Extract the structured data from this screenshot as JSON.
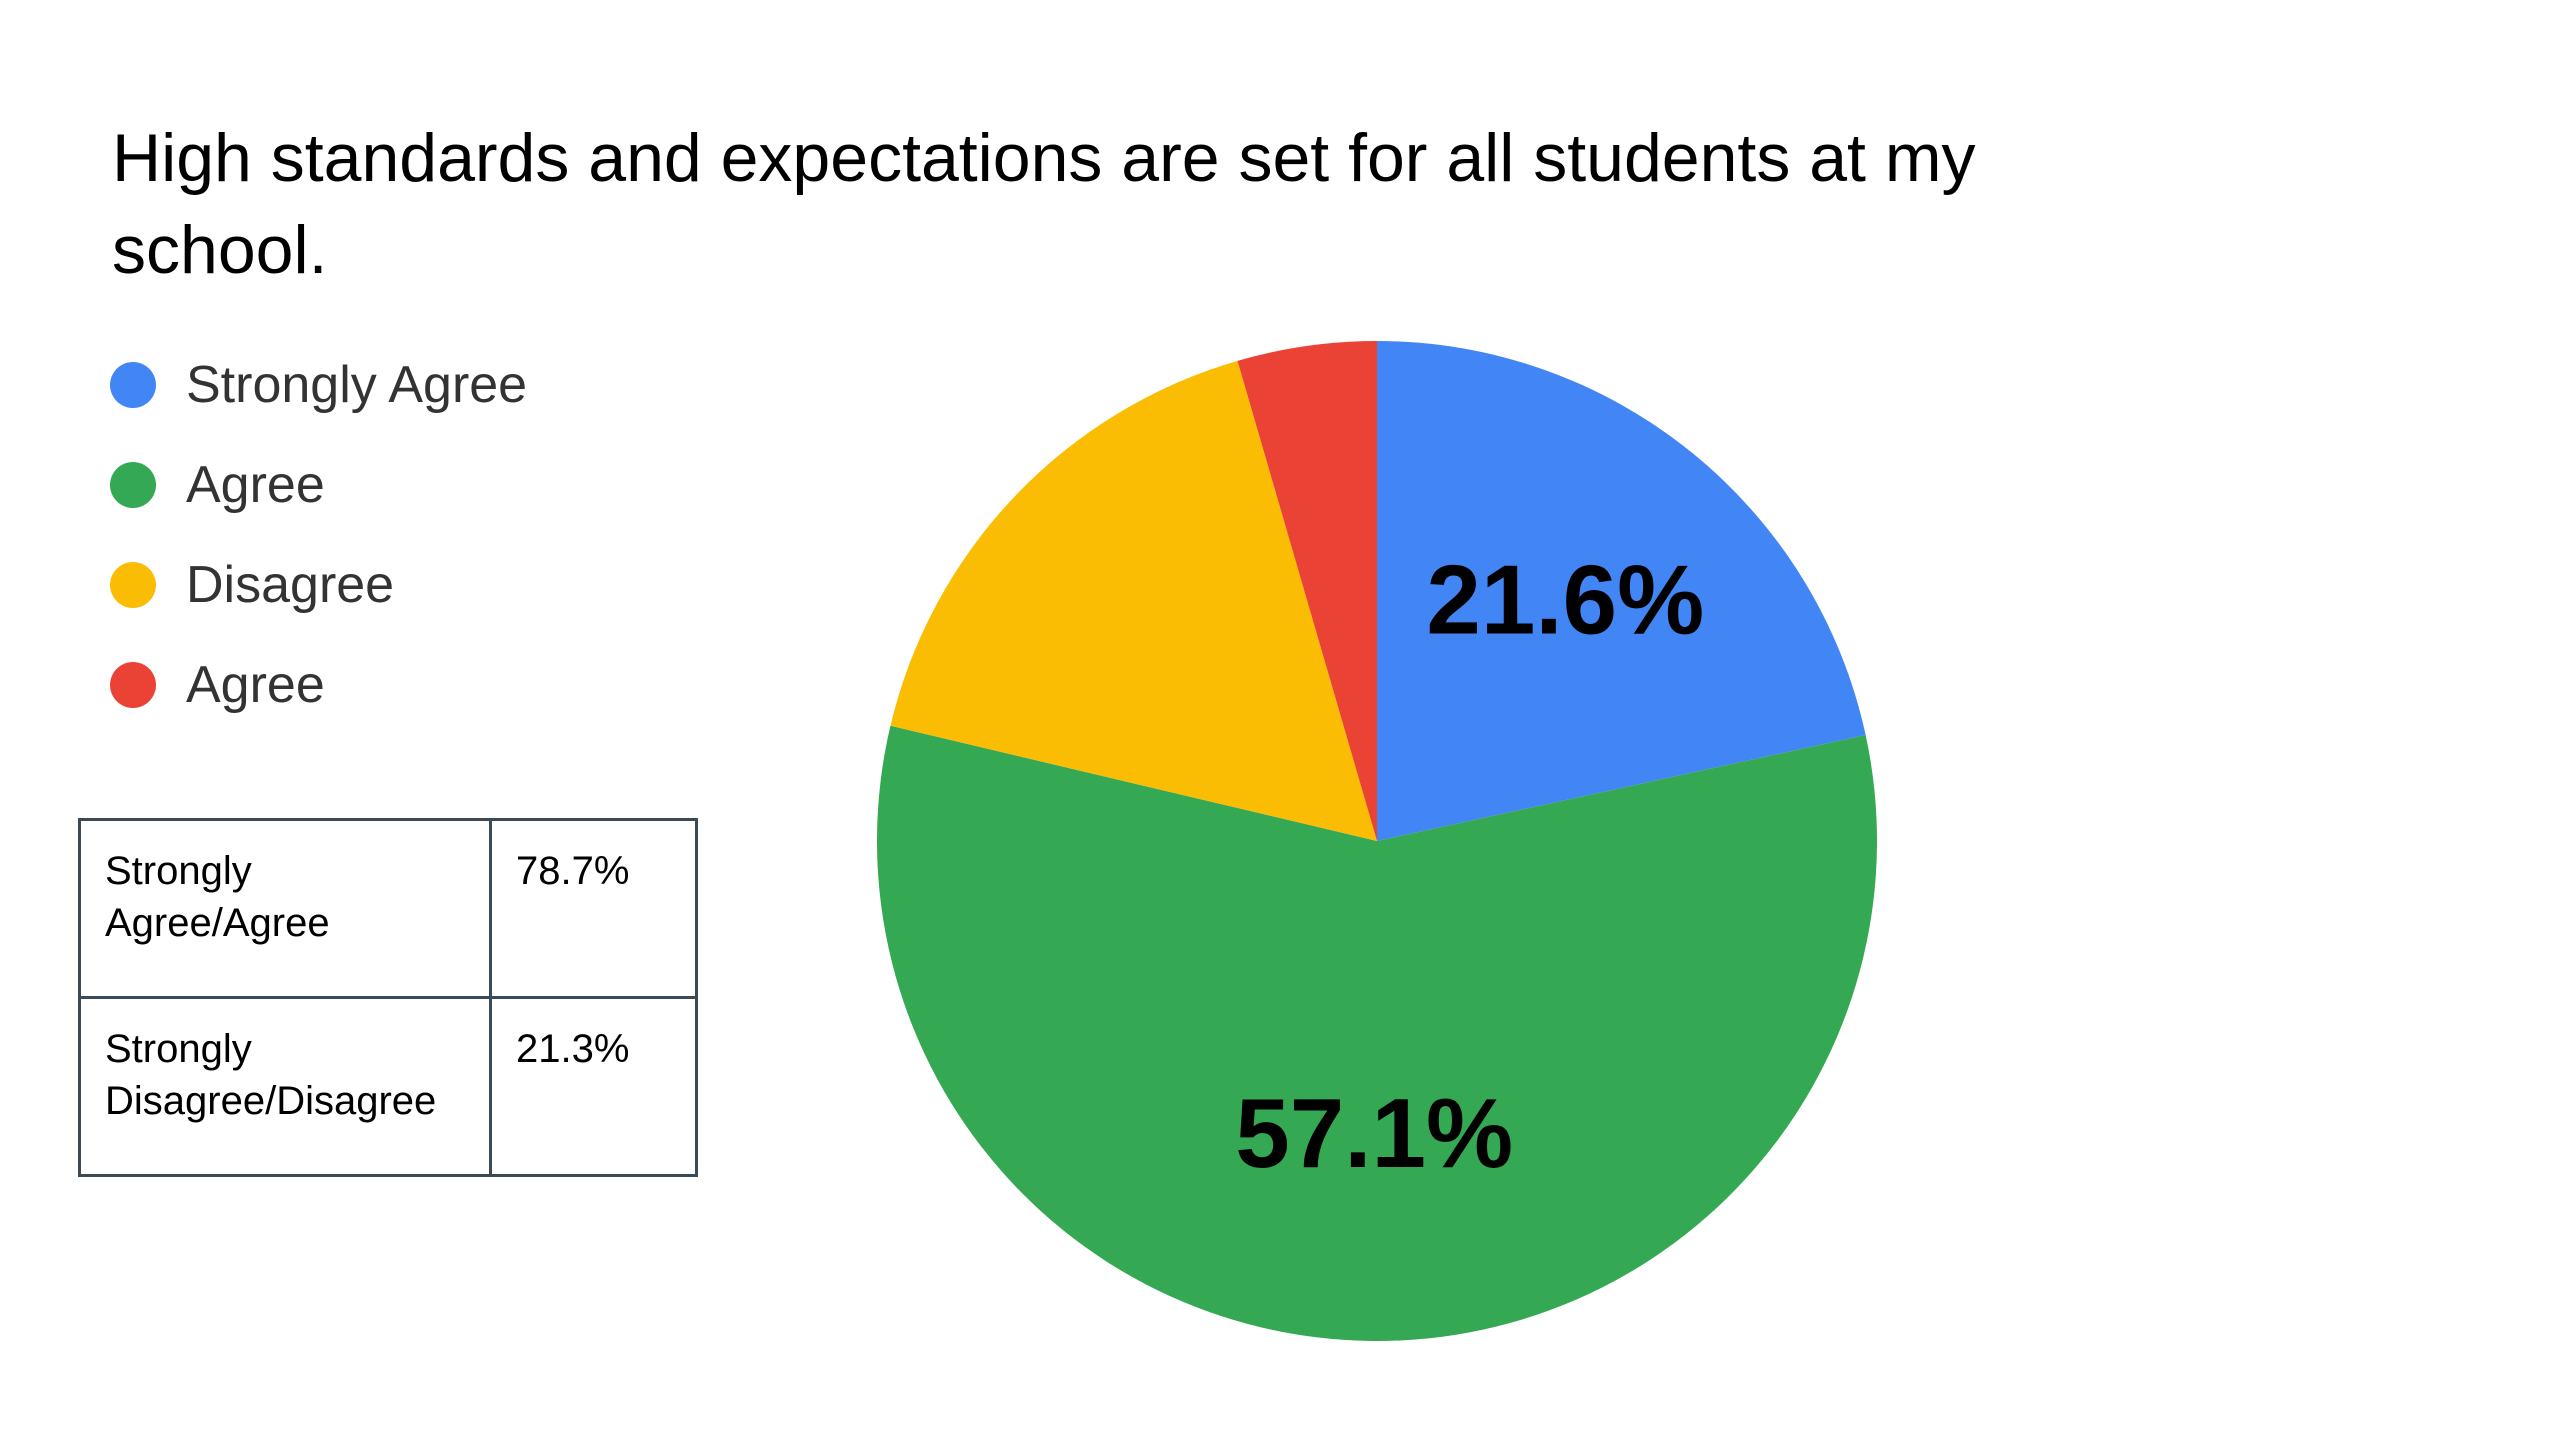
{
  "chart_data": {
    "type": "pie",
    "title": "High standards and expectations are set for all students at my school.",
    "categories": [
      "Strongly Agree",
      "Agree",
      "Disagree",
      "Agree"
    ],
    "values": [
      21.6,
      57.1,
      16.8,
      4.5
    ],
    "value_labels": [
      "21.6%",
      "57.1%",
      null,
      null
    ],
    "colors": [
      "#4285f4",
      "#34a853",
      "#fbbc04",
      "#ea4335"
    ],
    "legend": "left"
  },
  "table": {
    "rows": [
      [
        "Strongly Agree/Agree",
        "78.7%"
      ],
      [
        "Strongly Disagree/Disagree",
        "21.3%"
      ]
    ]
  }
}
